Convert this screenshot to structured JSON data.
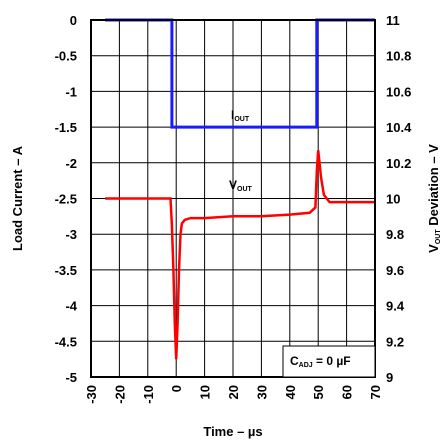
{
  "chart_data": {
    "type": "line",
    "xlabel": "Time – µs",
    "ylabel_left": "Load Current – A",
    "ylabel_right_main": "V",
    "ylabel_right_sub": "OUT",
    "ylabel_right_rest": " Deviation – V",
    "x_ticks": [
      -30,
      -20,
      -10,
      0,
      10,
      20,
      30,
      40,
      50,
      60,
      70
    ],
    "x_tick_labels": [
      "-30",
      "-20",
      "-10",
      "0",
      "10",
      "20",
      "30",
      "40",
      "50",
      "60",
      "70"
    ],
    "xlim": [
      -30,
      70
    ],
    "y_left_ticks": [
      0,
      -0.5,
      -1,
      -1.5,
      -2,
      -2.5,
      -3,
      -3.5,
      -4,
      -4.5,
      -5
    ],
    "y_left_tick_labels": [
      "0",
      "-0.5",
      "-1",
      "-1.5",
      "-2",
      "-2.5",
      "-3",
      "-3.5",
      "-4",
      "-4.5",
      "-5"
    ],
    "y_left_lim": [
      -5,
      0
    ],
    "y_right_ticks": [
      11,
      10.8,
      10.6,
      10.4,
      10.2,
      10,
      9.8,
      9.6,
      9.4,
      9.2,
      9
    ],
    "y_right_tick_labels": [
      "11",
      "10.8",
      "10.6",
      "10.4",
      "10.2",
      "10",
      "9.8",
      "9.6",
      "9.4",
      "9.2",
      "9"
    ],
    "y_right_lim": [
      9,
      11
    ],
    "grid": true,
    "series": [
      {
        "name_main": "I",
        "name_sub": "OUT",
        "axis": "left",
        "color": "#1a1aff",
        "x": [
          -25,
          -1.5,
          -1.5,
          49.5,
          49.5,
          70
        ],
        "y": [
          0,
          0,
          -1.5,
          -1.5,
          0,
          0
        ]
      },
      {
        "name_main": "V",
        "name_sub": "OUT",
        "axis": "right",
        "color": "#ff0000",
        "x": [
          -25,
          -15,
          -5,
          -2,
          -1.5,
          -1,
          -0.5,
          0,
          0.5,
          1,
          1.5,
          2,
          3,
          5,
          10,
          20,
          30,
          40,
          47,
          49,
          49.5,
          50,
          51,
          52,
          54,
          60,
          70
        ],
        "y": [
          10,
          10,
          10,
          10,
          9.85,
          9.6,
          9.3,
          9.1,
          9.3,
          9.6,
          9.8,
          9.86,
          9.88,
          9.89,
          9.89,
          9.9,
          9.9,
          9.91,
          9.92,
          9.95,
          10.15,
          10.27,
          10.12,
          10.02,
          9.98,
          9.98,
          9.98
        ]
      }
    ],
    "annotation_main": "C",
    "annotation_sub": "ADJ",
    "annotation_rest": " = 0 µF"
  }
}
